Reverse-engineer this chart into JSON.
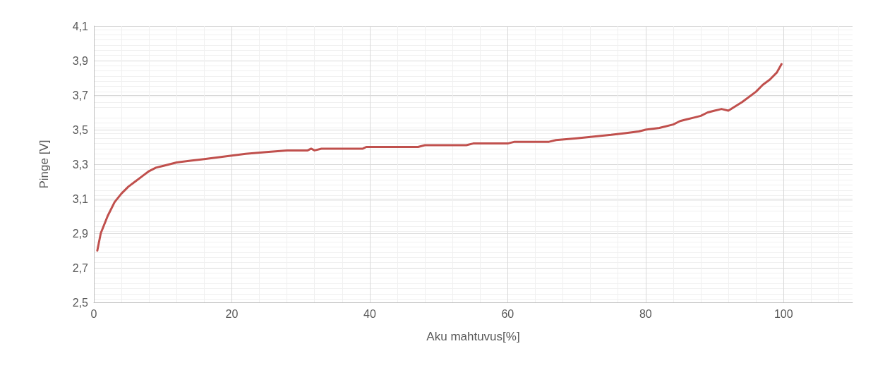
{
  "chart_data": {
    "type": "line",
    "xlabel": "Aku mahtuvus[%]",
    "ylabel": "Pinge [V]",
    "xlim": [
      0,
      110
    ],
    "xticks": [
      0,
      20,
      40,
      60,
      80,
      100
    ],
    "ylim": [
      2.5,
      4.1
    ],
    "yticks": [
      {
        "value": 2.5,
        "label": "2,5"
      },
      {
        "value": 2.7,
        "label": "2,7"
      },
      {
        "value": 2.9,
        "label": "2,9"
      },
      {
        "value": 3.1,
        "label": "3,1"
      },
      {
        "value": 3.3,
        "label": "3,3"
      },
      {
        "value": 3.5,
        "label": "3,5"
      },
      {
        "value": 3.7,
        "label": "3,7"
      },
      {
        "value": 3.9,
        "label": "3,9"
      },
      {
        "value": 4.1,
        "label": "4,1"
      }
    ],
    "grid": true,
    "marker": "none",
    "line_style": "solid",
    "x": [
      0.5,
      1,
      2,
      3,
      4,
      5,
      6,
      7,
      8,
      9,
      10,
      11,
      12,
      14,
      16,
      18,
      20,
      22,
      25,
      28,
      31,
      31.5,
      32,
      33,
      39,
      39.5,
      47,
      48,
      54,
      55,
      60,
      61,
      66,
      67,
      70,
      72.5,
      75,
      77,
      79,
      80,
      82,
      84,
      85,
      86,
      87,
      88,
      89,
      90,
      91,
      92,
      94,
      96,
      97,
      98,
      99,
      99.7
    ],
    "series": [
      {
        "color": "#c0504d",
        "values": [
          2.8,
          2.9,
          3.0,
          3.08,
          3.13,
          3.17,
          3.2,
          3.23,
          3.26,
          3.28,
          3.29,
          3.3,
          3.31,
          3.32,
          3.33,
          3.34,
          3.35,
          3.36,
          3.37,
          3.38,
          3.38,
          3.39,
          3.38,
          3.39,
          3.39,
          3.4,
          3.4,
          3.41,
          3.41,
          3.42,
          3.42,
          3.43,
          3.43,
          3.44,
          3.45,
          3.46,
          3.47,
          3.48,
          3.49,
          3.5,
          3.51,
          3.53,
          3.55,
          3.56,
          3.57,
          3.58,
          3.6,
          3.61,
          3.62,
          3.61,
          3.66,
          3.72,
          3.76,
          3.79,
          3.83,
          3.88
        ]
      }
    ]
  }
}
